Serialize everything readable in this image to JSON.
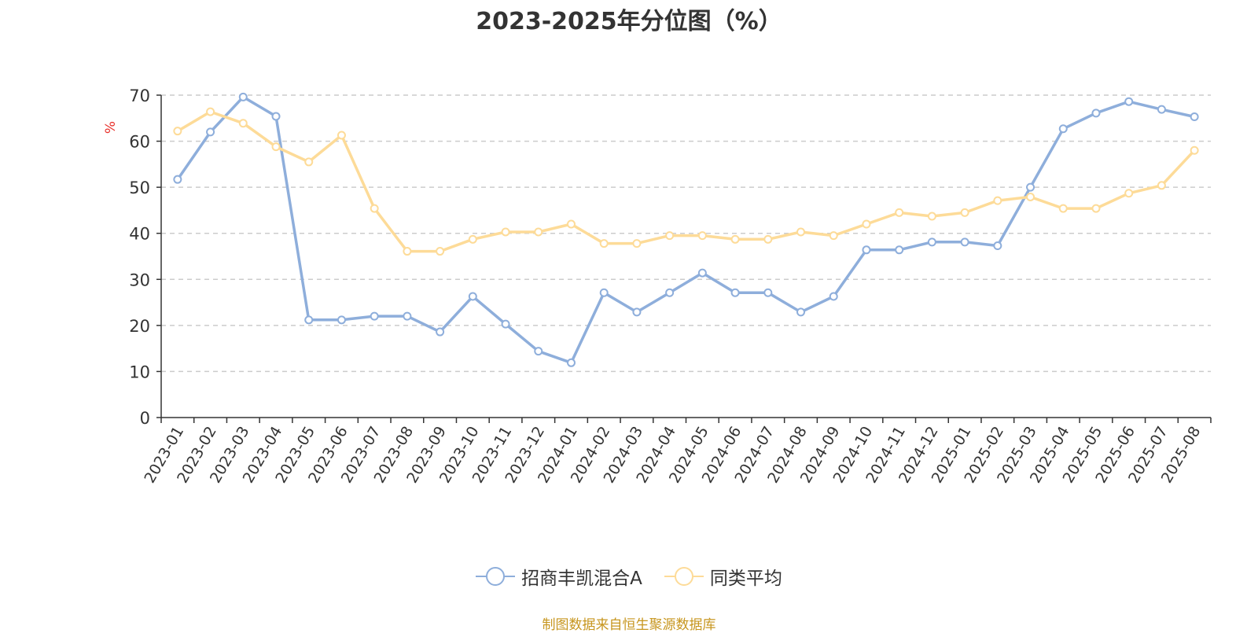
{
  "chart_data": {
    "type": "line",
    "title": "2023-2025年分位图（%）",
    "ylabel": "%",
    "xlabel": "",
    "ylim": [
      0,
      70
    ],
    "yticks": [
      0,
      10,
      20,
      30,
      40,
      50,
      60,
      70
    ],
    "grid": true,
    "legend_position": "bottom-center",
    "categories": [
      "2023-01",
      "2023-02",
      "2023-03",
      "2023-04",
      "2023-05",
      "2023-06",
      "2023-07",
      "2023-08",
      "2023-09",
      "2023-10",
      "2023-11",
      "2023-12",
      "2024-01",
      "2024-02",
      "2024-03",
      "2024-04",
      "2024-05",
      "2024-06",
      "2024-07",
      "2024-08",
      "2024-09",
      "2024-10",
      "2024-11",
      "2024-12",
      "2025-01",
      "2025-02",
      "2025-03",
      "2025-04",
      "2025-05",
      "2025-06",
      "2025-07",
      "2025-08"
    ],
    "series": [
      {
        "name": "招商丰凯混合A",
        "color": "#8eaedb",
        "values": [
          51.7,
          62.0,
          69.6,
          65.4,
          21.2,
          21.2,
          22.0,
          22.0,
          18.6,
          26.3,
          20.3,
          14.4,
          11.9,
          27.1,
          22.9,
          27.1,
          31.4,
          27.1,
          27.1,
          22.9,
          26.3,
          36.4,
          36.4,
          38.1,
          38.1,
          37.3,
          50.0,
          62.7,
          66.1,
          68.6,
          66.9,
          65.3
        ]
      },
      {
        "name": "同类平均",
        "color": "#fddb98",
        "values": [
          62.2,
          66.4,
          63.9,
          58.8,
          55.5,
          61.3,
          45.4,
          36.1,
          36.1,
          38.7,
          40.3,
          40.3,
          42.0,
          37.8,
          37.8,
          39.5,
          39.5,
          38.7,
          38.7,
          40.3,
          39.5,
          42.0,
          44.5,
          43.7,
          44.5,
          47.1,
          47.9,
          45.4,
          45.4,
          48.7,
          50.4,
          58.0
        ]
      }
    ]
  },
  "source_note": "制图数据来自恒生聚源数据库"
}
